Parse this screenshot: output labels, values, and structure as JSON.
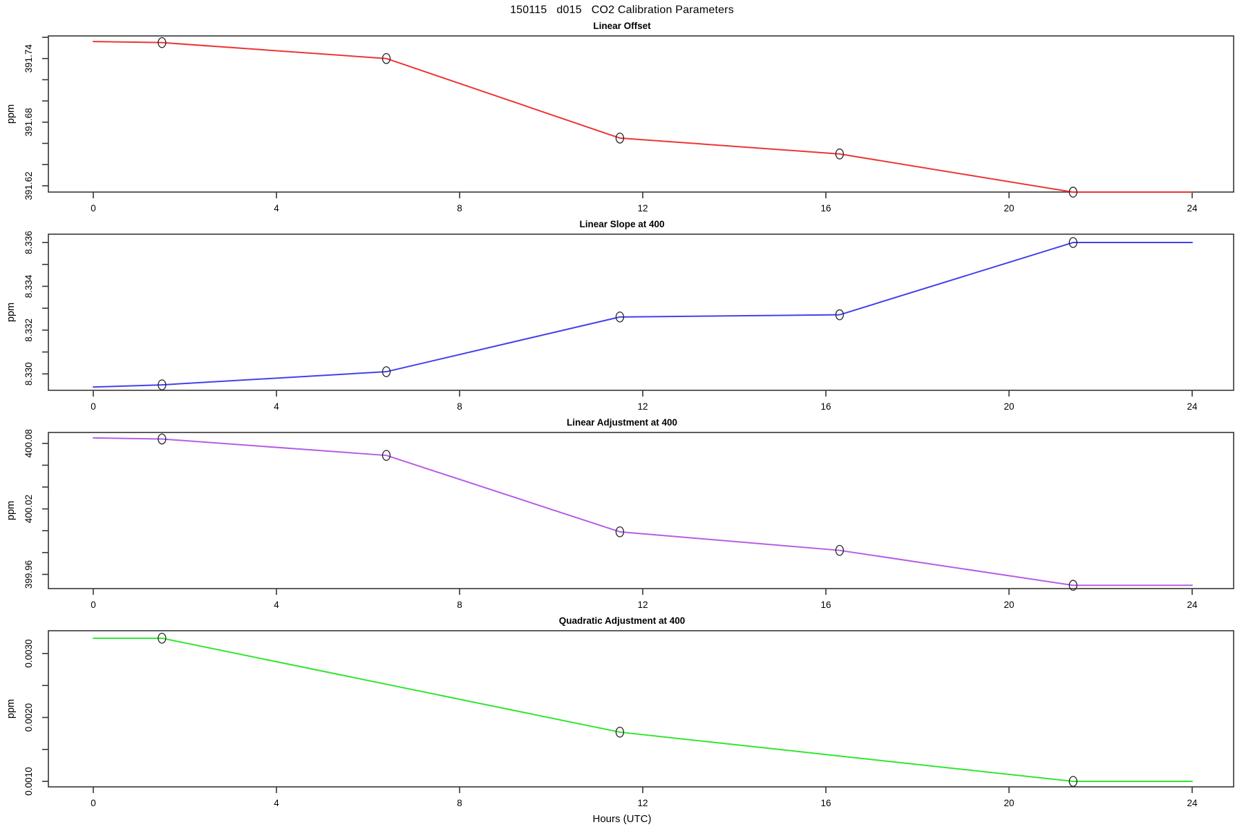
{
  "header": {
    "title": "150115   d015   CO2 Calibration Parameters"
  },
  "xaxis": {
    "label": "Hours (UTC)",
    "range": [
      0,
      24
    ],
    "ticks": [
      0,
      4,
      8,
      12,
      16,
      20,
      24
    ]
  },
  "style": {
    "axis_color": "#333333",
    "marker_color": "#222222"
  },
  "chart_data": [
    {
      "type": "line",
      "title": "Linear Offset",
      "ylabel": "ppm",
      "color": "#ee3333",
      "ylim": [
        391.6141,
        391.7613
      ],
      "yticks": [
        {
          "v": 391.62,
          "label": "391.62"
        },
        {
          "v": 391.64,
          "label": ""
        },
        {
          "v": 391.66,
          "label": ""
        },
        {
          "v": 391.68,
          "label": "391.68"
        },
        {
          "v": 391.7,
          "label": ""
        },
        {
          "v": 391.72,
          "label": ""
        },
        {
          "v": 391.74,
          "label": "391.74"
        },
        {
          "v": 391.76,
          "label": ""
        }
      ],
      "x": [
        0,
        1.5,
        6.4,
        11.5,
        16.3,
        21.4,
        24
      ],
      "y": [
        391.756,
        391.755,
        391.74,
        391.665,
        391.65,
        391.614,
        391.614
      ],
      "points": {
        "x": [
          1.5,
          6.4,
          11.5,
          16.3,
          21.4
        ],
        "y": [
          391.755,
          391.74,
          391.665,
          391.65,
          391.614
        ]
      }
    },
    {
      "type": "line",
      "title": "Linear Slope at 400",
      "ylabel": "ppm",
      "color": "#4040ee",
      "ylim": [
        8.32925,
        8.33638
      ],
      "yticks": [
        {
          "v": 8.33,
          "label": "8.330"
        },
        {
          "v": 8.331,
          "label": ""
        },
        {
          "v": 8.332,
          "label": "8.332"
        },
        {
          "v": 8.333,
          "label": ""
        },
        {
          "v": 8.334,
          "label": "8.334"
        },
        {
          "v": 8.335,
          "label": ""
        },
        {
          "v": 8.336,
          "label": "8.336"
        }
      ],
      "x": [
        0,
        1.5,
        6.4,
        11.5,
        16.3,
        21.4,
        24
      ],
      "y": [
        8.3294,
        8.3295,
        8.3301,
        8.3326,
        8.3327,
        8.336,
        8.336
      ],
      "points": {
        "x": [
          1.5,
          6.4,
          11.5,
          16.3,
          21.4
        ],
        "y": [
          8.3295,
          8.3301,
          8.3326,
          8.3327,
          8.336
        ]
      }
    },
    {
      "type": "line",
      "title": "Linear Adjustment at 400",
      "ylabel": "ppm",
      "color": "#b55ce6",
      "ylim": [
        399.947,
        400.09
      ],
      "yticks": [
        {
          "v": 399.96,
          "label": "399.96"
        },
        {
          "v": 399.98,
          "label": ""
        },
        {
          "v": 400.0,
          "label": ""
        },
        {
          "v": 400.02,
          "label": "400.02"
        },
        {
          "v": 400.04,
          "label": ""
        },
        {
          "v": 400.06,
          "label": ""
        },
        {
          "v": 400.08,
          "label": "400.08"
        }
      ],
      "x": [
        0,
        1.5,
        6.4,
        11.5,
        16.3,
        21.4,
        24
      ],
      "y": [
        400.085,
        400.084,
        400.069,
        399.999,
        399.982,
        399.95,
        399.95
      ],
      "points": {
        "x": [
          1.5,
          6.4,
          11.5,
          16.3,
          21.4
        ],
        "y": [
          400.084,
          400.069,
          399.999,
          399.982,
          399.95
        ]
      }
    },
    {
      "type": "line",
      "title": "Quadratic Adjustment at 400",
      "ylabel": "ppm",
      "color": "#2ee62e",
      "ylim": [
        0.000914,
        0.003357
      ],
      "yticks": [
        {
          "v": 0.001,
          "label": "0.0010"
        },
        {
          "v": 0.0015,
          "label": ""
        },
        {
          "v": 0.002,
          "label": "0.0020"
        },
        {
          "v": 0.0025,
          "label": ""
        },
        {
          "v": 0.003,
          "label": "0.0030"
        }
      ],
      "x": [
        0,
        1.5,
        11.5,
        21.4,
        24
      ],
      "y": [
        0.00324,
        0.00324,
        0.00177,
        0.001,
        0.001
      ],
      "points": {
        "x": [
          1.5,
          11.5,
          21.4
        ],
        "y": [
          0.00324,
          0.00177,
          0.001
        ]
      }
    }
  ]
}
